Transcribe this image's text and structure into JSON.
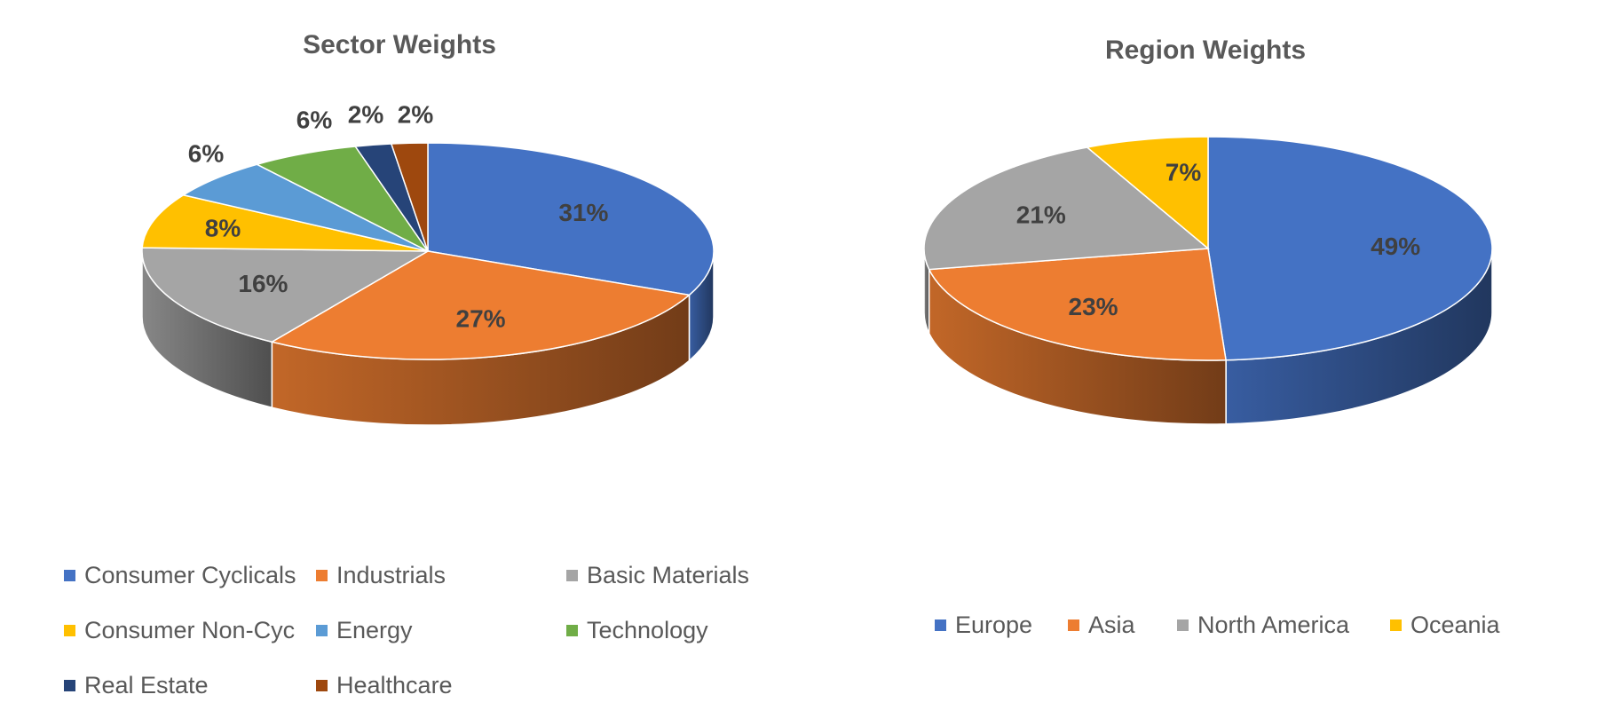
{
  "chart_data": [
    {
      "type": "pie",
      "title": "Sector Weights",
      "style": "3d",
      "legend_position": "bottom",
      "slices": [
        {
          "label": "Consumer Cyclicals",
          "value": 31,
          "display": "31%",
          "color": "#4472C4"
        },
        {
          "label": "Industrials",
          "value": 27,
          "display": "27%",
          "color": "#ED7D31"
        },
        {
          "label": "Basic Materials",
          "value": 16,
          "display": "16%",
          "color": "#A5A5A5"
        },
        {
          "label": "Consumer Non-Cyc",
          "value": 8,
          "display": "8%",
          "color": "#FFC000"
        },
        {
          "label": "Energy",
          "value": 6,
          "display": "6%",
          "color": "#5B9BD5"
        },
        {
          "label": "Technology",
          "value": 6,
          "display": "6%",
          "color": "#70AD47"
        },
        {
          "label": "Real Estate",
          "value": 2,
          "display": "2%",
          "color": "#264478"
        },
        {
          "label": "Healthcare",
          "value": 2,
          "display": "2%",
          "color": "#9E480E"
        }
      ]
    },
    {
      "type": "pie",
      "title": "Region Weights",
      "style": "3d",
      "legend_position": "bottom",
      "slices": [
        {
          "label": "Europe",
          "value": 49,
          "display": "49%",
          "color": "#4472C4"
        },
        {
          "label": "Asia",
          "value": 23,
          "display": "23%",
          "color": "#ED7D31"
        },
        {
          "label": "North America",
          "value": 21,
          "display": "21%",
          "color": "#A5A5A5"
        },
        {
          "label": "Oceania",
          "value": 7,
          "display": "7%",
          "color": "#FFC000"
        }
      ]
    }
  ]
}
